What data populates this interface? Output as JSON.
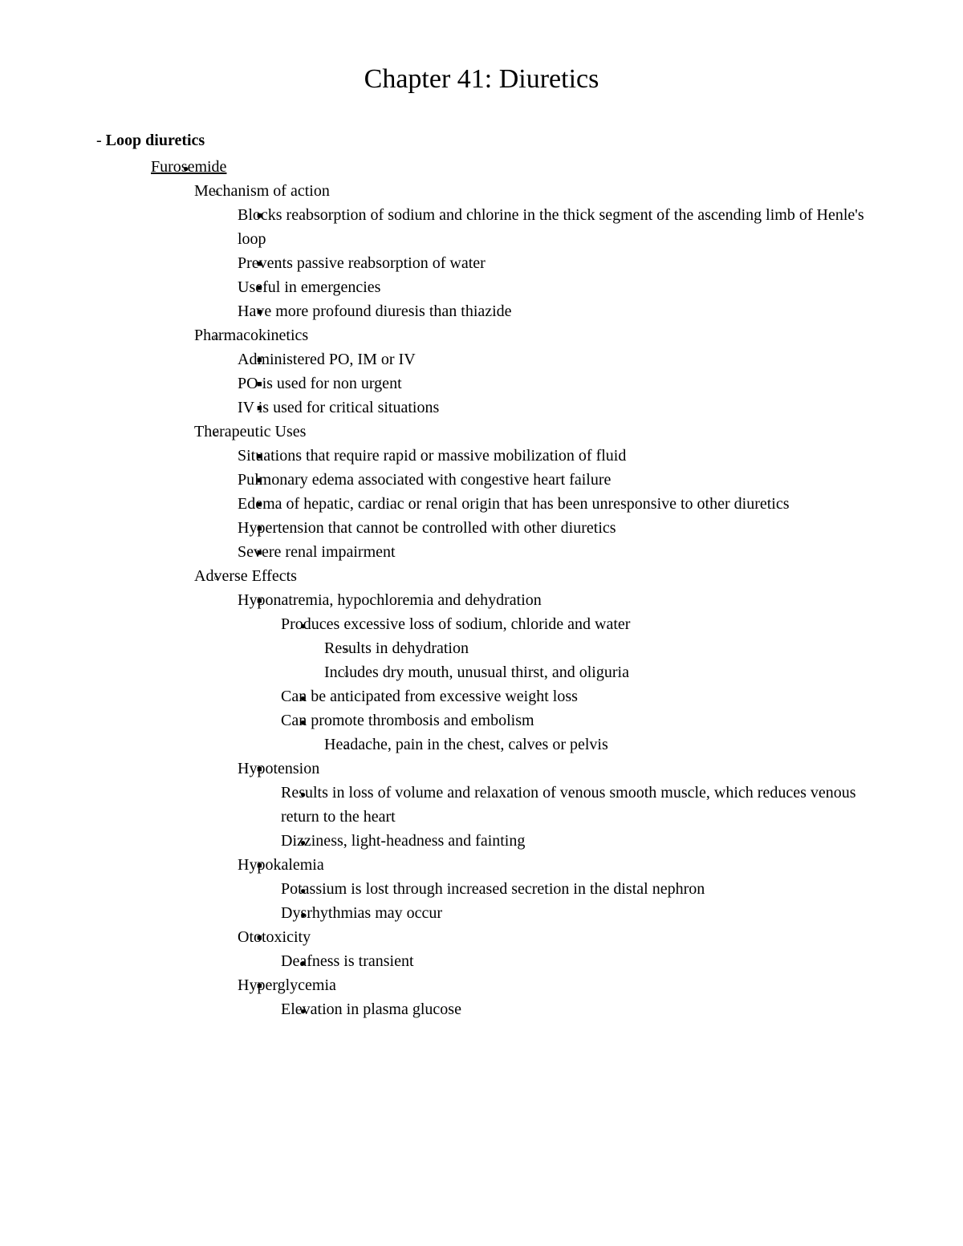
{
  "title": "Chapter 41: Diuretics",
  "section_dash": "- ",
  "section_label": "Loop diuretics",
  "drug": "Furosemide",
  "moa": {
    "heading": "Mechanism of action",
    "items": [
      "Blocks reabsorption of sodium and chlorine in the thick segment of the ascending limb of Henle's loop",
      "Prevents passive reabsorption of water",
      "Useful in emergencies",
      "Have more profound diuresis than thiazide"
    ]
  },
  "pk": {
    "heading": "Pharmacokinetics",
    "items": [
      "Administered PO, IM or IV",
      "PO is used for non urgent",
      "IV is used for critical situations"
    ]
  },
  "uses": {
    "heading": "Therapeutic Uses",
    "items": [
      "Situations that require rapid or massive mobilization of fluid",
      "Pulmonary edema associated with congestive heart failure",
      "Edema of hepatic, cardiac or renal origin that has been unresponsive to other diuretics",
      "Hypertension that cannot be controlled with other diuretics",
      "Severe renal impairment"
    ]
  },
  "ae": {
    "heading": "Adverse Effects",
    "hypo_na": {
      "heading": "Hyponatremia, hypochloremia and dehydration",
      "a": {
        "text": "Produces excessive loss of sodium, chloride and water",
        "sub": [
          "Results in dehydration",
          "Includes dry mouth, unusual thirst, and oliguria"
        ]
      },
      "b": "Can be anticipated from excessive weight loss",
      "c": {
        "text": "Can promote thrombosis and embolism",
        "sub": [
          "Headache, pain in the chest, calves or pelvis"
        ]
      }
    },
    "hypotension": {
      "heading": "Hypotension",
      "items": [
        "Results in loss of volume and relaxation of venous smooth muscle, which reduces venous return to the heart",
        "Dizziness, light-headness and fainting"
      ]
    },
    "hypokalemia": {
      "heading": "Hypokalemia",
      "items": [
        "Potassium is lost through increased secretion in the distal nephron",
        "Dysrhythmias may occur"
      ]
    },
    "ototoxicity": {
      "heading": "Ototoxicity",
      "items": [
        "Deafness is transient"
      ]
    },
    "hyperglycemia": {
      "heading": "Hyperglycemia",
      "items": [
        "Elevation in plasma glucose"
      ]
    }
  }
}
